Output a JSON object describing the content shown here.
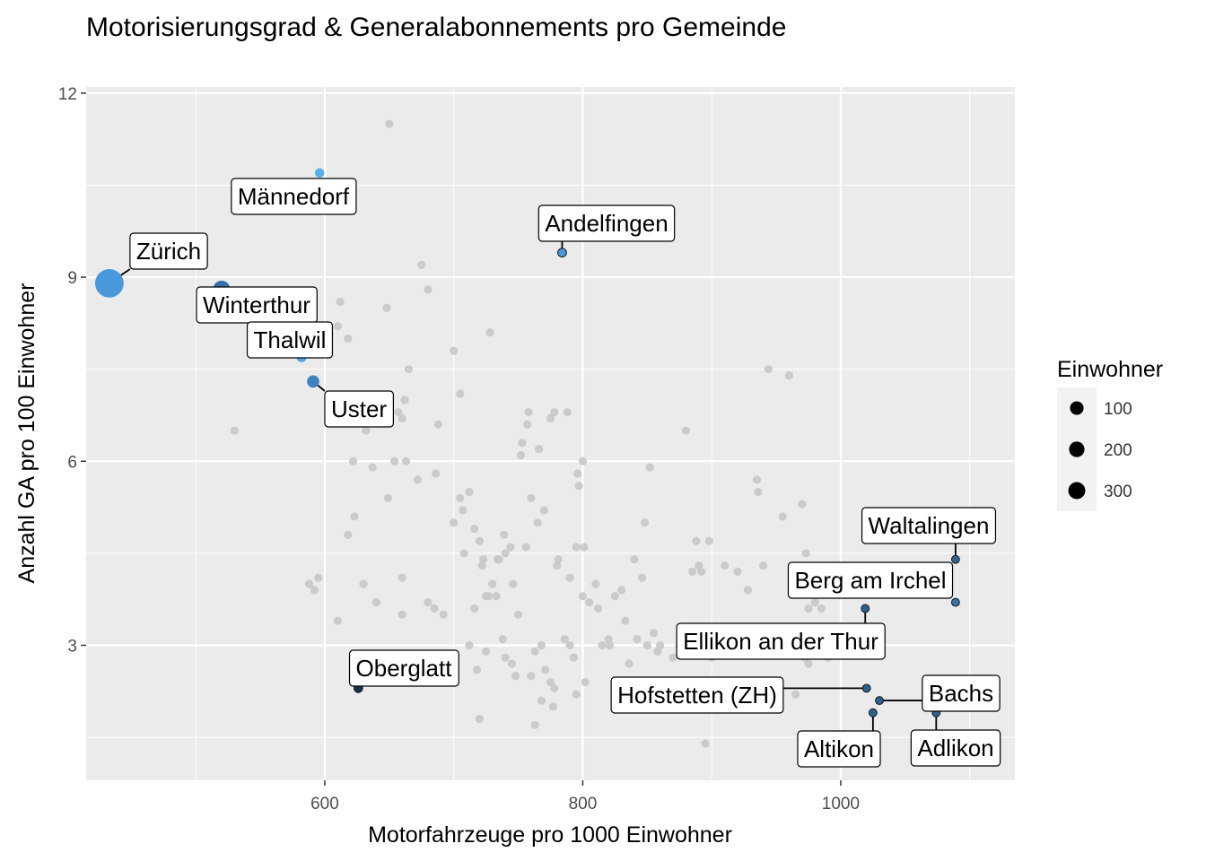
{
  "chart_data": {
    "type": "scatter",
    "title": "Motorisierungsgrad & Generalabonnements pro Gemeinde",
    "xlabel": "Motorfahrzeuge pro 1000 Einwohner",
    "ylabel": "Anzahl GA pro 100 Einwohner",
    "xlim": [
      415,
      1135
    ],
    "ylim": [
      0.8,
      12.1
    ],
    "x_ticks": [
      {
        "value": 600,
        "label": "600"
      },
      {
        "value": 800,
        "label": "800"
      },
      {
        "value": 1000,
        "label": "1000"
      }
    ],
    "y_ticks": [
      {
        "value": 3,
        "label": "3"
      },
      {
        "value": 6,
        "label": "6"
      },
      {
        "value": 9,
        "label": "9"
      },
      {
        "value": 12,
        "label": "12"
      }
    ],
    "grid": true,
    "legend": {
      "title": "Einwohner",
      "placement": "right",
      "entries": [
        {
          "value": 100,
          "label": "100"
        },
        {
          "value": 200,
          "label": "200"
        },
        {
          "value": 300,
          "label": "300"
        }
      ]
    },
    "highlighted": [
      {
        "name": "Zürich",
        "x": 433,
        "y": 8.9,
        "size": 420,
        "color": "#4a98dc"
      },
      {
        "name": "Männedorf",
        "x": 596,
        "y": 10.7,
        "size": 11,
        "color": "#5aaeea"
      },
      {
        "name": "Andelfingen",
        "x": 784,
        "y": 9.4,
        "size": 7,
        "color": "#4a98dc"
      },
      {
        "name": "Winterthur",
        "x": 520,
        "y": 8.8,
        "size": 110,
        "color": "#3672a8"
      },
      {
        "name": "Thalwil",
        "x": 582,
        "y": 7.7,
        "size": 18,
        "color": "#55a6e4"
      },
      {
        "name": "Uster",
        "x": 591,
        "y": 7.3,
        "size": 35,
        "color": "#3f82c0"
      },
      {
        "name": "Oberglatt",
        "x": 626,
        "y": 2.3,
        "size": 7,
        "color": "#1a2f47"
      },
      {
        "name": "Waltalingen",
        "x": 1089,
        "y": 4.4,
        "size": 4,
        "color": "#30628f"
      },
      {
        "name": "Berg am Irchel",
        "x": 1089,
        "y": 3.7,
        "size": 4,
        "color": "#3672a8"
      },
      {
        "name": "Ellikon an der Thur",
        "x": 1019,
        "y": 3.6,
        "size": 4,
        "color": "#2d5e8c"
      },
      {
        "name": "Hofstetten (ZH)",
        "x": 1020,
        "y": 2.3,
        "size": 4,
        "color": "#2d5e8c"
      },
      {
        "name": "Bachs",
        "x": 1030,
        "y": 2.1,
        "size": 4,
        "color": "#2d5e8c"
      },
      {
        "name": "Altikon",
        "x": 1025,
        "y": 1.9,
        "size": 4,
        "color": "#30628f"
      },
      {
        "name": "Adlikon",
        "x": 1074,
        "y": 1.9,
        "size": 4,
        "color": "#30628f"
      }
    ],
    "others": {
      "color": "#c8c8c8",
      "points": [
        [
          650,
          11.5
        ],
        [
          675,
          9.2
        ],
        [
          680,
          8.8
        ],
        [
          612,
          8.6
        ],
        [
          648,
          8.5
        ],
        [
          610,
          8.2
        ],
        [
          618,
          8.0
        ],
        [
          700,
          7.8
        ],
        [
          728,
          8.1
        ],
        [
          665,
          7.5
        ],
        [
          705,
          7.1
        ],
        [
          660,
          6.7
        ],
        [
          662,
          7.0
        ],
        [
          530,
          6.5
        ],
        [
          632,
          6.5
        ],
        [
          688,
          6.6
        ],
        [
          657,
          6.8
        ],
        [
          622,
          6.0
        ],
        [
          637,
          5.9
        ],
        [
          654,
          6.0
        ],
        [
          672,
          5.7
        ],
        [
          663,
          6.0
        ],
        [
          686,
          5.8
        ],
        [
          649,
          5.4
        ],
        [
          623,
          5.1
        ],
        [
          618,
          4.8
        ],
        [
          595,
          4.1
        ],
        [
          588,
          4.0
        ],
        [
          592,
          3.9
        ],
        [
          610,
          3.4
        ],
        [
          630,
          4.0
        ],
        [
          640,
          3.7
        ],
        [
          660,
          4.1
        ],
        [
          680,
          3.7
        ],
        [
          685,
          3.6
        ],
        [
          692,
          3.5
        ],
        [
          705,
          5.4
        ],
        [
          707,
          5.2
        ],
        [
          712,
          5.5
        ],
        [
          716,
          4.9
        ],
        [
          720,
          4.7
        ],
        [
          723,
          4.4
        ],
        [
          730,
          4.0
        ],
        [
          740,
          4.5
        ],
        [
          746,
          4.0
        ],
        [
          752,
          6.1
        ],
        [
          753,
          6.3
        ],
        [
          757,
          6.6
        ],
        [
          758,
          6.8
        ],
        [
          766,
          6.2
        ],
        [
          770,
          5.2
        ],
        [
          775,
          6.7
        ],
        [
          778,
          6.8
        ],
        [
          788,
          6.8
        ],
        [
          796,
          5.8
        ],
        [
          800,
          6.0
        ],
        [
          797,
          5.6
        ],
        [
          795,
          4.6
        ],
        [
          801,
          4.6
        ],
        [
          781,
          4.4
        ],
        [
          780,
          4.3
        ],
        [
          790,
          4.1
        ],
        [
          760,
          5.4
        ],
        [
          765,
          5.0
        ],
        [
          756,
          4.6
        ],
        [
          739,
          4.8
        ],
        [
          734,
          4.4
        ],
        [
          725,
          3.8
        ],
        [
          727,
          3.8
        ],
        [
          733,
          3.8
        ],
        [
          735,
          4.4
        ],
        [
          738,
          3.1
        ],
        [
          740,
          2.8
        ],
        [
          725,
          2.9
        ],
        [
          745,
          2.7
        ],
        [
          748,
          2.5
        ],
        [
          760,
          2.5
        ],
        [
          763,
          2.9
        ],
        [
          768,
          3.0
        ],
        [
          771,
          2.6
        ],
        [
          775,
          2.4
        ],
        [
          778,
          2.3
        ],
        [
          786,
          3.1
        ],
        [
          790,
          3.0
        ],
        [
          793,
          2.8
        ],
        [
          795,
          2.2
        ],
        [
          800,
          3.8
        ],
        [
          805,
          3.7
        ],
        [
          810,
          4.0
        ],
        [
          815,
          3.0
        ],
        [
          820,
          3.1
        ],
        [
          821,
          3.0
        ],
        [
          825,
          3.8
        ],
        [
          830,
          3.9
        ],
        [
          833,
          3.4
        ],
        [
          840,
          4.4
        ],
        [
          842,
          3.1
        ],
        [
          846,
          4.1
        ],
        [
          848,
          5.0
        ],
        [
          850,
          3.0
        ],
        [
          852,
          5.9
        ],
        [
          858,
          2.9
        ],
        [
          860,
          3.0
        ],
        [
          870,
          2.8
        ],
        [
          875,
          3.0
        ],
        [
          880,
          6.5
        ],
        [
          885,
          4.2
        ],
        [
          888,
          4.7
        ],
        [
          890,
          4.3
        ],
        [
          892,
          4.2
        ],
        [
          898,
          4.7
        ],
        [
          900,
          2.8
        ],
        [
          910,
          4.3
        ],
        [
          920,
          4.2
        ],
        [
          925,
          3.0
        ],
        [
          928,
          3.9
        ],
        [
          935,
          5.7
        ],
        [
          936,
          5.5
        ],
        [
          940,
          4.3
        ],
        [
          944,
          7.5
        ],
        [
          955,
          5.1
        ],
        [
          960,
          7.4
        ],
        [
          970,
          5.3
        ],
        [
          973,
          4.5
        ],
        [
          975,
          3.6
        ],
        [
          980,
          3.7
        ],
        [
          985,
          3.6
        ],
        [
          990,
          2.8
        ],
        [
          975,
          2.7
        ],
        [
          965,
          2.2
        ],
        [
          972,
          2.8
        ],
        [
          716,
          3.6
        ],
        [
          712,
          3.0
        ],
        [
          718,
          2.6
        ],
        [
          720,
          1.8
        ],
        [
          763,
          1.7
        ],
        [
          895,
          1.4
        ],
        [
          777,
          2.0
        ],
        [
          700,
          5.0
        ],
        [
          708,
          4.5
        ],
        [
          744,
          4.6
        ],
        [
          750,
          3.5
        ],
        [
          768,
          2.1
        ],
        [
          660,
          3.5
        ],
        [
          812,
          3.6
        ],
        [
          722,
          4.3
        ],
        [
          802,
          2.4
        ],
        [
          836,
          2.7
        ],
        [
          855,
          3.2
        ],
        [
          948,
          3.3
        ],
        [
          958,
          3.1
        ]
      ]
    }
  }
}
